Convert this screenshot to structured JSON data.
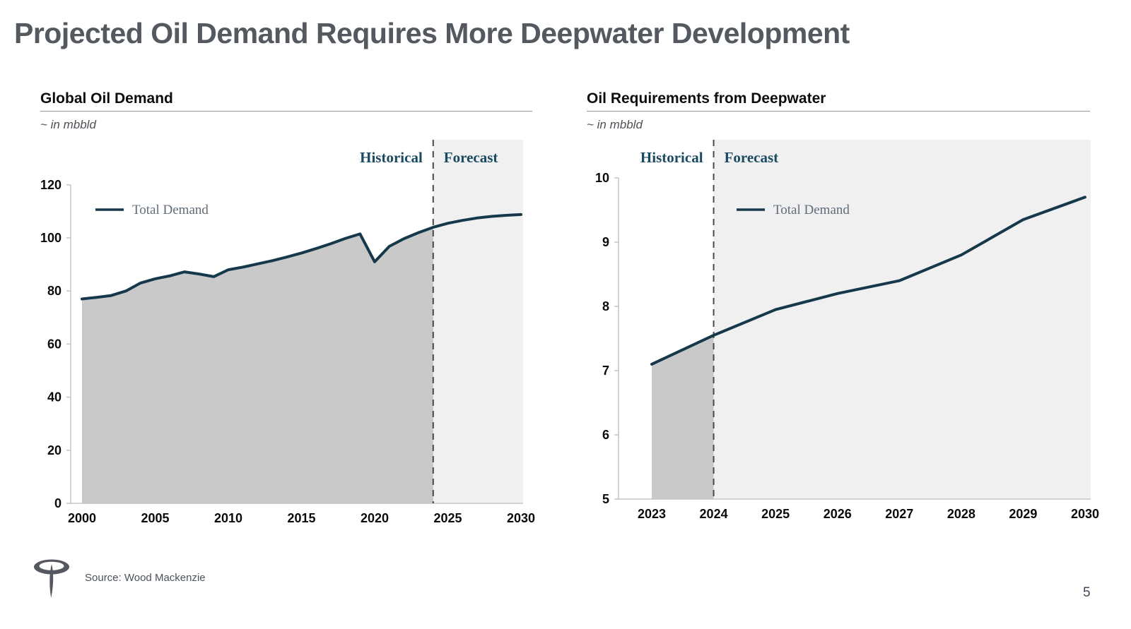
{
  "slide": {
    "title": "Projected Oil Demand Requires More Deepwater Development",
    "source": "Source: Wood Mackenzie",
    "page_number": "5",
    "logo_name": "transocean-logo"
  },
  "colors": {
    "line": "#15384a",
    "historical_fill": "#c9c9ca",
    "forecast_bg": "#f0f0f1",
    "dashed_line": "#45494e",
    "axis": "#c3c5c7",
    "tick_text": "#0a0a0a",
    "phase_label": "#1a4a61",
    "legend_text": "#606d79"
  },
  "chart_data": [
    {
      "type": "area",
      "title": "Global Oil Demand",
      "subtitle": "~ in mbbld",
      "historical_label": "Historical",
      "forecast_label": "Forecast",
      "legend": [
        {
          "name": "Total Demand"
        }
      ],
      "x": [
        2000,
        2001,
        2002,
        2003,
        2004,
        2005,
        2006,
        2007,
        2008,
        2009,
        2010,
        2011,
        2012,
        2013,
        2014,
        2015,
        2016,
        2017,
        2018,
        2019,
        2020,
        2021,
        2022,
        2023,
        2024,
        2025,
        2026,
        2027,
        2028,
        2029,
        2030
      ],
      "series": [
        {
          "name": "Total Demand",
          "values": [
            77,
            77.6,
            78.3,
            80,
            83,
            84.6,
            85.7,
            87.2,
            86.4,
            85.4,
            88,
            89,
            90.2,
            91.4,
            92.8,
            94.3,
            96,
            97.8,
            99.8,
            101.5,
            91,
            96.8,
            99.7,
            102,
            104,
            105.5,
            106.6,
            107.5,
            108.1,
            108.5,
            108.8
          ]
        }
      ],
      "forecast_start_x": 2024,
      "xlim": [
        2000,
        2030
      ],
      "ylim": [
        0,
        120
      ],
      "yticks": [
        0,
        20,
        40,
        60,
        80,
        100,
        120
      ],
      "xticks": [
        2000,
        2005,
        2010,
        2015,
        2020,
        2025,
        2030
      ],
      "grid": false,
      "legend_position": "inside-top-left"
    },
    {
      "type": "area",
      "title": "Oil Requirements from Deepwater",
      "subtitle": "~ in mbbld",
      "historical_label": "Historical",
      "forecast_label": "Forecast",
      "legend": [
        {
          "name": "Total Demand"
        }
      ],
      "x": [
        2023,
        2024,
        2025,
        2026,
        2027,
        2028,
        2029,
        2030
      ],
      "series": [
        {
          "name": "Total Demand",
          "values": [
            7.1,
            7.55,
            7.95,
            8.2,
            8.4,
            8.8,
            9.35,
            9.7
          ]
        }
      ],
      "forecast_start_x": 2024,
      "xlim": [
        2023,
        2030
      ],
      "ylim": [
        5,
        10
      ],
      "yticks": [
        5,
        6,
        7,
        8,
        9,
        10
      ],
      "xticks": [
        2023,
        2024,
        2025,
        2026,
        2027,
        2028,
        2029,
        2030
      ],
      "grid": false,
      "legend_position": "inside-top-left"
    }
  ]
}
